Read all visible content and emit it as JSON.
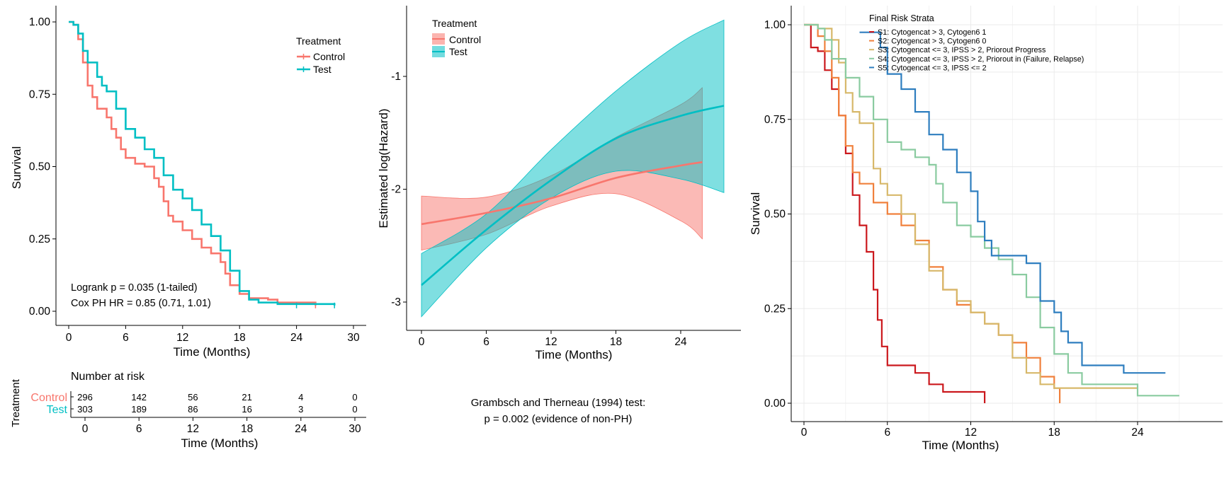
{
  "colors": {
    "control": "#F8766D",
    "test": "#00BFC4",
    "s1": "#CB181D",
    "s2": "#F0803C",
    "s3": "#D7B86A",
    "s4": "#8ACBA0",
    "s5": "#2E7EBF",
    "grid": "#ebebeb"
  },
  "chart_data": [
    {
      "type": "line",
      "subtype": "kaplan-meier",
      "ylabel": "Survival",
      "xlabel": "Time (Months)",
      "xlim": [
        0,
        30
      ],
      "ylim": [
        0,
        1
      ],
      "x_ticks": [
        0,
        6,
        12,
        18,
        24,
        30
      ],
      "y_ticks": [
        0,
        0.25,
        0.5,
        0.75,
        1
      ],
      "y_tick_labels": [
        "0.00",
        "0.25",
        "0.50",
        "0.75",
        "1.00"
      ],
      "grid": false,
      "legend": {
        "title": "Treatment",
        "position": "top-right"
      },
      "annotations": [
        "Logrank p = 0.035 (1-tailed)",
        "Cox PH HR = 0.85 (0.71, 1.01)"
      ],
      "series": [
        {
          "name": "Control",
          "color_key": "control",
          "points": [
            [
              0,
              1
            ],
            [
              0.5,
              0.99
            ],
            [
              1,
              0.94
            ],
            [
              1.5,
              0.86
            ],
            [
              2,
              0.78
            ],
            [
              2.5,
              0.74
            ],
            [
              3,
              0.7
            ],
            [
              4,
              0.67
            ],
            [
              4.5,
              0.63
            ],
            [
              5,
              0.6
            ],
            [
              5.5,
              0.56
            ],
            [
              6,
              0.53
            ],
            [
              7,
              0.51
            ],
            [
              8,
              0.5
            ],
            [
              9,
              0.46
            ],
            [
              9.5,
              0.43
            ],
            [
              10,
              0.38
            ],
            [
              10.5,
              0.33
            ],
            [
              11,
              0.31
            ],
            [
              12,
              0.28
            ],
            [
              13,
              0.25
            ],
            [
              14,
              0.22
            ],
            [
              15,
              0.2
            ],
            [
              16,
              0.17
            ],
            [
              16.5,
              0.13
            ],
            [
              17,
              0.09
            ],
            [
              18,
              0.06
            ],
            [
              19,
              0.045
            ],
            [
              21,
              0.04
            ],
            [
              22,
              0.03
            ],
            [
              26,
              0.02
            ]
          ],
          "censor_x": [
            26
          ]
        },
        {
          "name": "Test",
          "color_key": "test",
          "points": [
            [
              0,
              1
            ],
            [
              0.5,
              0.99
            ],
            [
              1,
              0.96
            ],
            [
              1.5,
              0.9
            ],
            [
              2,
              0.86
            ],
            [
              3,
              0.81
            ],
            [
              3.5,
              0.78
            ],
            [
              4,
              0.76
            ],
            [
              5,
              0.7
            ],
            [
              6,
              0.63
            ],
            [
              7,
              0.6
            ],
            [
              8,
              0.56
            ],
            [
              9,
              0.53
            ],
            [
              10,
              0.47
            ],
            [
              11,
              0.42
            ],
            [
              12,
              0.39
            ],
            [
              13,
              0.35
            ],
            [
              14,
              0.3
            ],
            [
              15,
              0.26
            ],
            [
              16,
              0.21
            ],
            [
              17,
              0.14
            ],
            [
              18,
              0.07
            ],
            [
              19,
              0.04
            ],
            [
              20,
              0.03
            ],
            [
              22,
              0.025
            ],
            [
              28,
              0.02
            ]
          ],
          "censor_x": [
            24,
            28
          ]
        }
      ],
      "risk_table": {
        "title": "Number at risk",
        "ylabel": "Treatment",
        "xlabel": "Time (Months)",
        "times": [
          0,
          6,
          12,
          18,
          24,
          30
        ],
        "rows": [
          {
            "name": "Control",
            "color_key": "control",
            "counts": [
              "296",
              "142",
              "56",
              "21",
              "4",
              "0"
            ]
          },
          {
            "name": "Test",
            "color_key": "test",
            "counts": [
              "303",
              "189",
              "86",
              "16",
              "3",
              "0"
            ]
          }
        ]
      }
    },
    {
      "type": "line",
      "subtype": "smooth-with-confidence-band",
      "ylabel": "Estimated log(Hazard)",
      "xlabel": "Time (Months)",
      "xlim": [
        -1.2,
        31.5
      ],
      "ylim": [
        -3.27,
        -0.26
      ],
      "x_ticks": [
        0,
        6,
        12,
        18,
        24
      ],
      "y_ticks": [
        -3,
        -2,
        -1
      ],
      "grid": false,
      "legend": {
        "title": "Treatment",
        "position": "top-left"
      },
      "footnote": [
        "Grambsch and Therneau (1994) test:",
        "p = 0.002 (evidence of non-PH)"
      ],
      "series": [
        {
          "name": "Control",
          "color_key": "control",
          "x": [
            0,
            6,
            12,
            18,
            24,
            26
          ],
          "fit": [
            -2.31,
            -2.21,
            -2.08,
            -1.9,
            -1.79,
            -1.76
          ],
          "lower": [
            -2.54,
            -2.4,
            -2.15,
            -2.04,
            -2.28,
            -2.44
          ],
          "upper": [
            -2.06,
            -2.07,
            -1.88,
            -1.54,
            -1.25,
            -1.1
          ]
        },
        {
          "name": "Test",
          "color_key": "test",
          "x": [
            0,
            6,
            12,
            18,
            24,
            28
          ],
          "fit": [
            -2.85,
            -2.36,
            -1.92,
            -1.55,
            -1.35,
            -1.26
          ],
          "lower": [
            -3.13,
            -2.52,
            -2.08,
            -1.84,
            -1.91,
            -2.03
          ],
          "upper": [
            -2.57,
            -2.22,
            -1.65,
            -1.13,
            -0.7,
            -0.5
          ]
        }
      ]
    },
    {
      "type": "line",
      "subtype": "kaplan-meier",
      "ylabel": "Survival",
      "xlabel": "Time (Months)",
      "xlim": [
        -1.2,
        29
      ],
      "ylim": [
        -0.05,
        1.05
      ],
      "x_ticks": [
        0,
        6,
        12,
        18,
        24
      ],
      "y_ticks": [
        0,
        0.25,
        0.5,
        0.75,
        1
      ],
      "y_tick_labels": [
        "0.00",
        "0.25",
        "0.50",
        "0.75",
        "1.00"
      ],
      "grid": true,
      "legend": {
        "title": "Final Risk Strata",
        "position": "top-right"
      },
      "series": [
        {
          "name": "S1: Cytogencat > 3, Cytogen6 1",
          "color_key": "s1",
          "points": [
            [
              0,
              1
            ],
            [
              0.5,
              0.94
            ],
            [
              1,
              0.93
            ],
            [
              1.5,
              0.88
            ],
            [
              2,
              0.83
            ],
            [
              2.5,
              0.76
            ],
            [
              3,
              0.66
            ],
            [
              3.5,
              0.55
            ],
            [
              4,
              0.47
            ],
            [
              4.5,
              0.4
            ],
            [
              5,
              0.3
            ],
            [
              5.3,
              0.22
            ],
            [
              5.6,
              0.15
            ],
            [
              6,
              0.1
            ],
            [
              8,
              0.08
            ],
            [
              9,
              0.05
            ],
            [
              10,
              0.03
            ],
            [
              13,
              0.0
            ]
          ]
        },
        {
          "name": "S2: Cytogencat > 3, Cytogen6 0",
          "color_key": "s2",
          "points": [
            [
              0,
              1
            ],
            [
              1,
              0.97
            ],
            [
              1.5,
              0.93
            ],
            [
              2,
              0.86
            ],
            [
              2.5,
              0.76
            ],
            [
              3,
              0.68
            ],
            [
              3.5,
              0.61
            ],
            [
              4,
              0.58
            ],
            [
              5,
              0.53
            ],
            [
              6,
              0.5
            ],
            [
              7,
              0.47
            ],
            [
              8,
              0.43
            ],
            [
              9,
              0.36
            ],
            [
              10,
              0.3
            ],
            [
              11,
              0.26
            ],
            [
              12,
              0.24
            ],
            [
              13,
              0.21
            ],
            [
              14,
              0.18
            ],
            [
              15,
              0.16
            ],
            [
              16,
              0.12
            ],
            [
              17,
              0.07
            ],
            [
              18,
              0.04
            ],
            [
              18.4,
              0.0
            ]
          ]
        },
        {
          "name": "S3: Cytogencat <= 3, IPSS > 2, Priorout Progress",
          "color_key": "s3",
          "points": [
            [
              0,
              1
            ],
            [
              1,
              0.99
            ],
            [
              2,
              0.96
            ],
            [
              2.5,
              0.9
            ],
            [
              3,
              0.82
            ],
            [
              3.5,
              0.77
            ],
            [
              4,
              0.74
            ],
            [
              5,
              0.62
            ],
            [
              5.5,
              0.58
            ],
            [
              6,
              0.55
            ],
            [
              7,
              0.5
            ],
            [
              8,
              0.42
            ],
            [
              9,
              0.35
            ],
            [
              10,
              0.3
            ],
            [
              11,
              0.27
            ],
            [
              12,
              0.24
            ],
            [
              13,
              0.21
            ],
            [
              14,
              0.18
            ],
            [
              15,
              0.12
            ],
            [
              16,
              0.08
            ],
            [
              17,
              0.05
            ],
            [
              18,
              0.04
            ],
            [
              24,
              0.04
            ]
          ]
        },
        {
          "name": "S4: Cytogencat <= 3, IPSS > 2, Priorout in (Failure, Relapse)",
          "color_key": "s4",
          "points": [
            [
              0,
              1
            ],
            [
              1,
              0.99
            ],
            [
              1.5,
              0.96
            ],
            [
              2,
              0.91
            ],
            [
              3,
              0.86
            ],
            [
              4,
              0.81
            ],
            [
              5,
              0.75
            ],
            [
              6,
              0.69
            ],
            [
              7,
              0.67
            ],
            [
              8,
              0.65
            ],
            [
              9,
              0.63
            ],
            [
              9.5,
              0.58
            ],
            [
              10,
              0.53
            ],
            [
              11,
              0.47
            ],
            [
              12,
              0.44
            ],
            [
              13,
              0.41
            ],
            [
              14,
              0.38
            ],
            [
              15,
              0.34
            ],
            [
              16,
              0.28
            ],
            [
              17,
              0.2
            ],
            [
              18,
              0.13
            ],
            [
              19,
              0.08
            ],
            [
              20,
              0.05
            ],
            [
              24,
              0.02
            ],
            [
              27,
              0.02
            ]
          ]
        },
        {
          "name": "S5: Cytogencat <= 3, IPSS <= 2",
          "color_key": "s5",
          "points": [
            [
              4,
              0.98
            ],
            [
              5.5,
              0.94
            ],
            [
              6,
              0.87
            ],
            [
              7,
              0.83
            ],
            [
              8,
              0.77
            ],
            [
              9,
              0.71
            ],
            [
              10,
              0.67
            ],
            [
              11,
              0.61
            ],
            [
              12,
              0.56
            ],
            [
              12.5,
              0.48
            ],
            [
              13,
              0.43
            ],
            [
              13.5,
              0.39
            ],
            [
              16,
              0.37
            ],
            [
              17,
              0.27
            ],
            [
              18,
              0.24
            ],
            [
              18.5,
              0.19
            ],
            [
              19,
              0.16
            ],
            [
              20,
              0.1
            ],
            [
              23,
              0.08
            ],
            [
              26,
              0.08
            ]
          ]
        }
      ]
    }
  ]
}
